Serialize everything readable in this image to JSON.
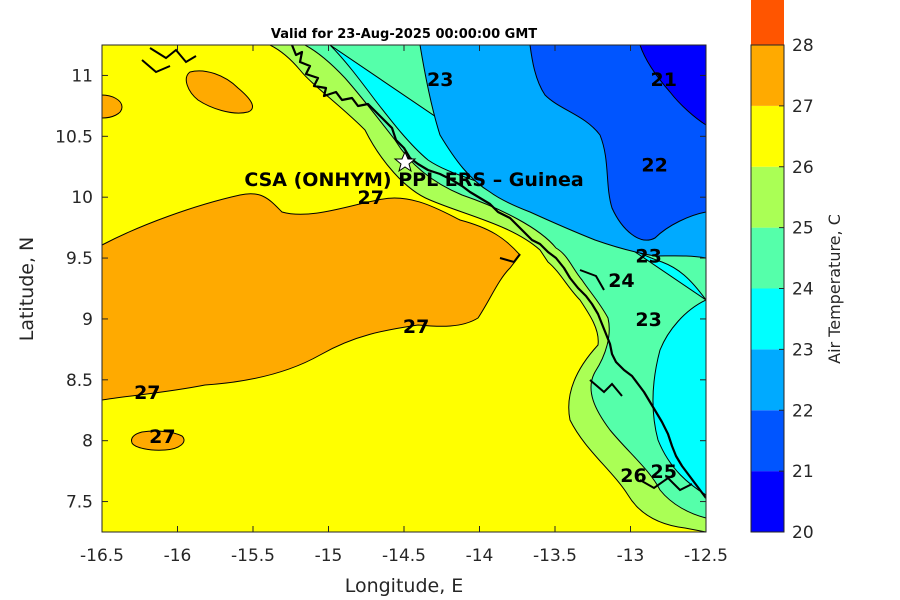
{
  "title": "Valid for 23-Aug-2025 00:00:00 GMT",
  "xlabel": "Longitude, E",
  "ylabel": "Latitude, N",
  "site_label": "CSA (ONHYM) PPL ERS  – Guinea",
  "x_ticks": [
    "-16.5",
    "-16",
    "-15.5",
    "-15",
    "-14.5",
    "-14",
    "-13.5",
    "-13",
    "-12.5"
  ],
  "y_ticks": [
    "11",
    "10.5",
    "10",
    "9.5",
    "9",
    "8.5",
    "8",
    "7.5"
  ],
  "colorbar": {
    "label": "Air Temperature, C",
    "ticks": [
      "20",
      "21",
      "22",
      "23",
      "24",
      "25",
      "26",
      "27",
      "28"
    ],
    "colors": [
      "#0000ff",
      "#0055ff",
      "#00aaff",
      "#00ffff",
      "#55ffaa",
      "#aaff55",
      "#ffff00",
      "#ffaa00",
      "#ff5500"
    ]
  },
  "contour_labels": [
    {
      "text": "27",
      "lon": -14.72,
      "lat": 10.0
    },
    {
      "text": "27",
      "lon": -14.42,
      "lat": 8.94
    },
    {
      "text": "27",
      "lon": -16.2,
      "lat": 8.4
    },
    {
      "text": "27",
      "lon": -16.1,
      "lat": 8.04
    },
    {
      "text": "23",
      "lon": -14.26,
      "lat": 10.97
    },
    {
      "text": "21",
      "lon": -12.78,
      "lat": 10.97
    },
    {
      "text": "22",
      "lon": -12.84,
      "lat": 10.27
    },
    {
      "text": "23",
      "lon": -12.88,
      "lat": 9.52
    },
    {
      "text": "23",
      "lon": -12.88,
      "lat": 9.0
    },
    {
      "text": "24",
      "lon": -13.06,
      "lat": 9.32
    },
    {
      "text": "25",
      "lon": -12.78,
      "lat": 7.75
    },
    {
      "text": "26",
      "lon": -12.98,
      "lat": 7.72
    }
  ]
}
